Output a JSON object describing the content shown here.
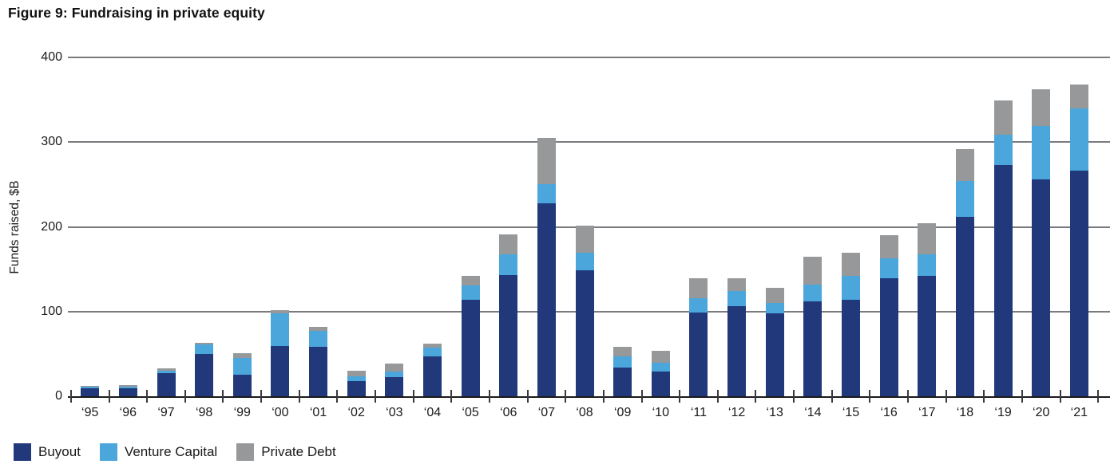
{
  "title": "Figure 9: Fundraising in private equity",
  "chart_data": {
    "type": "bar",
    "stacked": true,
    "title": "Figure 9: Fundraising in private equity",
    "xlabel": "",
    "ylabel": "Funds raised, $B",
    "ylim": [
      0,
      400
    ],
    "yticks": [
      0,
      100,
      200,
      300,
      400
    ],
    "grid": true,
    "legend_position": "bottom-left",
    "categories": [
      "‘95",
      "‘96",
      "‘97",
      "‘98",
      "‘99",
      "‘00",
      "‘01",
      "‘02",
      "‘03",
      "‘04",
      "‘05",
      "‘06",
      "‘07",
      "‘08",
      "‘09",
      "‘10",
      "‘11",
      "‘12",
      "‘13",
      "‘14",
      "‘15",
      "‘16",
      "‘17",
      "‘18",
      "‘19",
      "‘20",
      "‘21"
    ],
    "series": [
      {
        "name": "Buyout",
        "color": "#21397B",
        "values": [
          9,
          9,
          27,
          50,
          25,
          59,
          58,
          18,
          23,
          47,
          114,
          143,
          228,
          149,
          34,
          29,
          99,
          106,
          98,
          112,
          114,
          139,
          142,
          212,
          273,
          256,
          266
        ]
      },
      {
        "name": "Venture Capital",
        "color": "#4BA6DC",
        "values": [
          2,
          2,
          3,
          11,
          20,
          39,
          19,
          6,
          6,
          10,
          17,
          25,
          22,
          20,
          13,
          11,
          17,
          18,
          12,
          20,
          28,
          24,
          26,
          42,
          36,
          63,
          74
        ]
      },
      {
        "name": "Private Debt",
        "color": "#96989A",
        "values": [
          1,
          2,
          3,
          2,
          6,
          4,
          5,
          6,
          10,
          5,
          11,
          23,
          55,
          32,
          11,
          14,
          23,
          15,
          18,
          33,
          27,
          27,
          36,
          38,
          40,
          43,
          28
        ]
      }
    ]
  }
}
